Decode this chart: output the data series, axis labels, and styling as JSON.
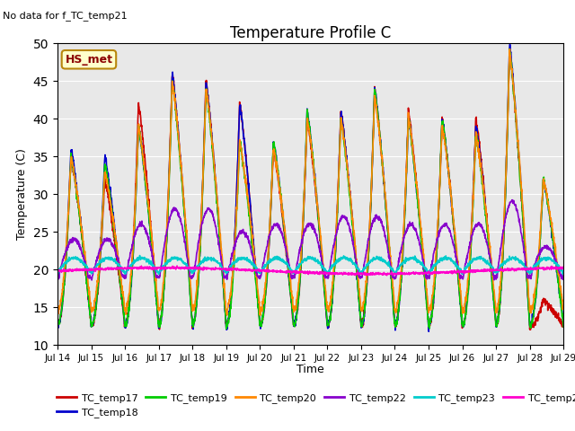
{
  "title": "Temperature Profile C",
  "subtitle": "No data for f_TC_temp21",
  "xlabel": "Time",
  "ylabel": "Temperature (C)",
  "annotation": "HS_met",
  "ylim": [
    10,
    50
  ],
  "background_color": "#e8e8e8",
  "series": {
    "TC_temp17": {
      "color": "#cc0000",
      "lw": 1.2
    },
    "TC_temp18": {
      "color": "#0000cc",
      "lw": 1.2
    },
    "TC_temp19": {
      "color": "#00cc00",
      "lw": 1.2
    },
    "TC_temp20": {
      "color": "#ff8800",
      "lw": 1.2
    },
    "TC_temp22": {
      "color": "#8800cc",
      "lw": 1.2
    },
    "TC_temp23": {
      "color": "#00cccc",
      "lw": 1.2
    },
    "TC_temp24": {
      "color": "#ff00cc",
      "lw": 1.2
    }
  },
  "xtick_labels": [
    "Jul 14",
    "Jul 15",
    "Jul 16",
    "Jul 17",
    "Jul 18",
    "Jul 19",
    "Jul 20",
    "Jul 21",
    "Jul 22",
    "Jul 23",
    "Jul 24",
    "Jul 25",
    "Jul 26",
    "Jul 27",
    "Jul 28",
    "Jul 29"
  ],
  "day_start": 14,
  "day_end": 29,
  "points_per_day": 144,
  "peaks17": [
    35,
    32,
    42,
    46,
    45,
    42,
    36,
    40,
    41,
    44,
    41,
    40,
    40,
    49,
    16
  ],
  "peaks18": [
    36,
    35,
    39,
    46,
    45,
    42,
    37,
    41,
    41,
    44,
    40,
    40,
    39,
    50,
    32
  ],
  "peaks19": [
    35,
    34,
    39,
    45,
    44,
    37,
    37,
    41,
    40,
    44,
    40,
    40,
    38,
    49,
    32
  ],
  "peaks20": [
    35,
    33,
    39,
    45,
    44,
    37,
    36,
    40,
    40,
    43,
    40,
    39,
    38,
    49,
    32
  ],
  "peaks22": [
    24,
    24,
    26,
    28,
    28,
    25,
    26,
    26,
    27,
    27,
    26,
    26,
    26,
    29,
    23
  ],
  "base_main": 12.5,
  "base_22": 19.0
}
